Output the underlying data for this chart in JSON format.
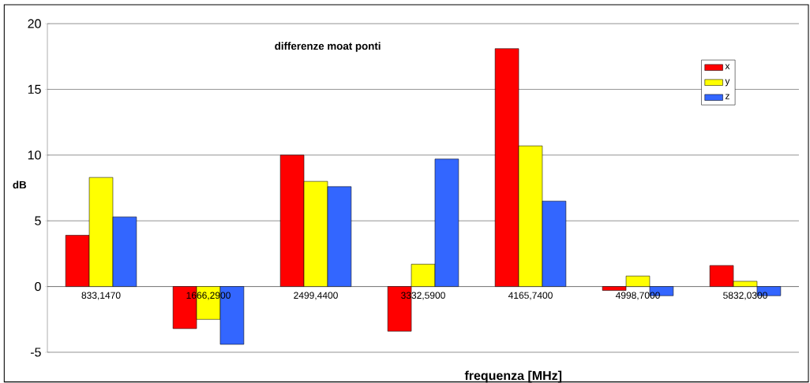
{
  "chart_data": {
    "type": "bar",
    "title": "differenze moat ponti",
    "xlabel": "frequenza [MHz]",
    "ylabel": "dB",
    "categories": [
      "833,1470",
      "1666,2900",
      "2499,4400",
      "3332,5900",
      "4165,7400",
      "4998,7000",
      "5832,0300"
    ],
    "series": [
      {
        "name": "x",
        "color": "#ff0000",
        "values": [
          3.9,
          -3.2,
          10.0,
          -3.4,
          18.1,
          -0.3,
          1.6
        ]
      },
      {
        "name": "y",
        "color": "#ffff00",
        "values": [
          8.3,
          -2.5,
          8.0,
          1.7,
          10.7,
          0.8,
          0.4
        ]
      },
      {
        "name": "z",
        "color": "#3366ff",
        "values": [
          5.3,
          -4.4,
          7.6,
          9.7,
          6.5,
          -0.7,
          -0.7
        ]
      }
    ],
    "ylim": [
      -5,
      20
    ],
    "yticks": [
      -5,
      0,
      5,
      10,
      15,
      20
    ],
    "grid": "y",
    "legend": "top right"
  }
}
